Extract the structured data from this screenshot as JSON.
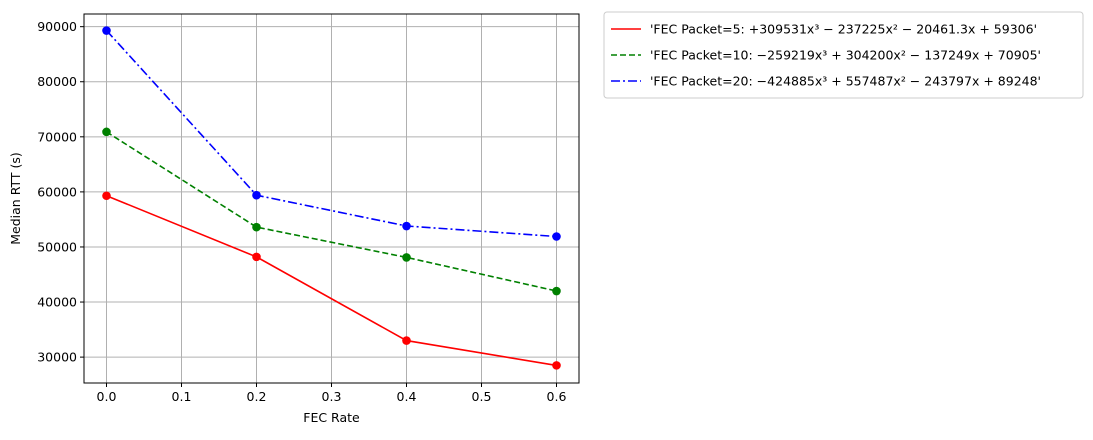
{
  "chart_data": {
    "type": "line",
    "xlabel": "FEC Rate",
    "ylabel": "Median RTT (s)",
    "xlim": [
      -0.03,
      0.63
    ],
    "ylim": [
      25300,
      92300
    ],
    "xticks": [
      0.0,
      0.1,
      0.2,
      0.3,
      0.4,
      0.5,
      0.6
    ],
    "xtick_labels": [
      "0.0",
      "0.1",
      "0.2",
      "0.3",
      "0.4",
      "0.5",
      "0.6"
    ],
    "yticks": [
      30000,
      40000,
      50000,
      60000,
      70000,
      80000,
      90000
    ],
    "ytick_labels": [
      "30000",
      "40000",
      "50000",
      "60000",
      "70000",
      "80000",
      "90000"
    ],
    "grid": true,
    "legend_position": "outside-right-top",
    "x": [
      0.0,
      0.2,
      0.4,
      0.6
    ],
    "series": [
      {
        "name": "'FEC Packet=5: +309531x³ − 237225x² − 20461.3x + 59306'",
        "values": [
          59300,
          48200,
          33000,
          28500
        ],
        "color": "#ff0000",
        "linestyle": "solid"
      },
      {
        "name": "'FEC Packet=10: −259219x³ + 304200x² − 137249x + 70905'",
        "values": [
          70900,
          53600,
          48100,
          42000
        ],
        "color": "#008000",
        "linestyle": "dashed"
      },
      {
        "name": "'FEC Packet=20: −424885x³ + 557487x² − 243797x + 89248'",
        "values": [
          89300,
          59400,
          53800,
          51900
        ],
        "color": "#0000ff",
        "linestyle": "dashdot"
      }
    ]
  }
}
